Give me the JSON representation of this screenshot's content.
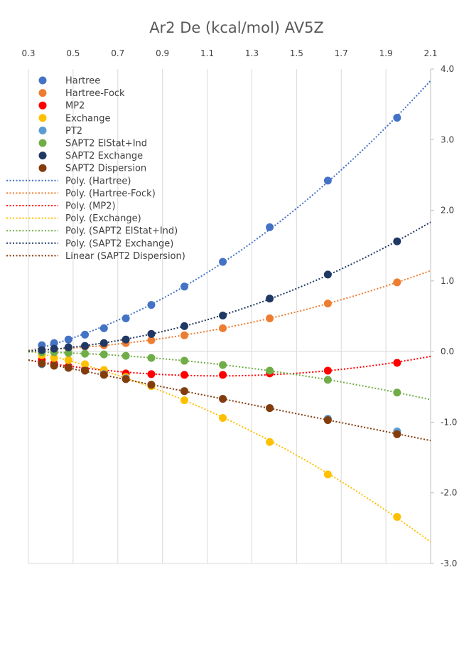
{
  "chart_data": {
    "type": "scatter",
    "title": "Ar2 De (kcal/mol) AV5Z",
    "xlabel": "",
    "ylabel": "",
    "xlim": [
      0.3,
      2.1
    ],
    "ylim": [
      -3.0,
      4.0
    ],
    "x_ticks": [
      "0.3",
      "0.5",
      "0.7",
      "0.9",
      "1.1",
      "1.3",
      "1.5",
      "1.7",
      "1.9",
      "2.1"
    ],
    "y_ticks": [
      "4.0",
      "3.0",
      "2.0",
      "1.0",
      "0.0",
      "-1.0",
      "-2.0",
      "-3.0"
    ],
    "grid": "vertical",
    "legend_position": "top-left",
    "series": [
      {
        "name": "Hartree",
        "color": "#4472C4",
        "x": [
          0.36,
          0.415,
          0.479,
          0.553,
          0.638,
          0.736,
          0.85,
          0.998,
          1.17,
          1.38,
          1.64,
          1.95
        ],
        "y": [
          0.09,
          0.12,
          0.17,
          0.24,
          0.33,
          0.47,
          0.66,
          0.92,
          1.27,
          1.76,
          2.42,
          3.31
        ]
      },
      {
        "name": "Hartree-Fock",
        "color": "#ED7D31",
        "x": [
          0.36,
          0.415,
          0.479,
          0.553,
          0.638,
          0.736,
          0.85,
          0.998,
          1.17,
          1.38,
          1.64,
          1.95
        ],
        "y": [
          0.02,
          0.03,
          0.05,
          0.07,
          0.09,
          0.12,
          0.16,
          0.23,
          0.33,
          0.47,
          0.68,
          0.98
        ]
      },
      {
        "name": "MP2",
        "color": "#FF0000",
        "x": [
          0.36,
          0.415,
          0.479,
          0.553,
          0.638,
          0.736,
          0.85,
          0.998,
          1.17,
          1.38,
          1.64,
          1.95
        ],
        "y": [
          -0.12,
          -0.17,
          -0.21,
          -0.25,
          -0.29,
          -0.31,
          -0.32,
          -0.33,
          -0.33,
          -0.31,
          -0.27,
          -0.16
        ]
      },
      {
        "name": "Exchange",
        "color": "#FFC000",
        "x": [
          0.36,
          0.415,
          0.479,
          0.553,
          0.638,
          0.736,
          0.85,
          0.998,
          1.17,
          1.38,
          1.64,
          1.95
        ],
        "y": [
          -0.05,
          -0.09,
          -0.12,
          -0.18,
          -0.26,
          -0.36,
          -0.49,
          -0.69,
          -0.94,
          -1.28,
          -1.74,
          -2.34
        ]
      },
      {
        "name": "PT2",
        "color": "#5B9BD5",
        "x": [
          0.36,
          0.415,
          0.479,
          0.553,
          0.638,
          0.736,
          0.85,
          0.998,
          1.17,
          1.38,
          1.64,
          1.95
        ],
        "y": [
          -0.18,
          -0.2,
          -0.23,
          -0.27,
          -0.32,
          -0.38,
          -0.47,
          -0.56,
          -0.67,
          -0.8,
          -0.95,
          -1.13
        ]
      },
      {
        "name": "SAPT2 ElStat+Ind",
        "color": "#70AD47",
        "x": [
          0.36,
          0.415,
          0.479,
          0.553,
          0.638,
          0.736,
          0.85,
          0.998,
          1.17,
          1.38,
          1.64,
          1.95
        ],
        "y": [
          -0.01,
          -0.01,
          -0.02,
          -0.03,
          -0.04,
          -0.06,
          -0.09,
          -0.13,
          -0.19,
          -0.27,
          -0.4,
          -0.58
        ]
      },
      {
        "name": "SAPT2 Exchange",
        "color": "#203864",
        "x": [
          0.36,
          0.415,
          0.479,
          0.553,
          0.638,
          0.736,
          0.85,
          0.998,
          1.17,
          1.38,
          1.64,
          1.95
        ],
        "y": [
          0.02,
          0.04,
          0.06,
          0.08,
          0.12,
          0.17,
          0.25,
          0.36,
          0.51,
          0.75,
          1.09,
          1.56
        ]
      },
      {
        "name": "SAPT2 Dispersion",
        "color": "#843C0C",
        "x": [
          0.36,
          0.415,
          0.479,
          0.553,
          0.638,
          0.736,
          0.85,
          0.998,
          1.17,
          1.38,
          1.64,
          1.95
        ],
        "y": [
          -0.17,
          -0.2,
          -0.23,
          -0.27,
          -0.33,
          -0.39,
          -0.47,
          -0.56,
          -0.67,
          -0.8,
          -0.97,
          -1.17
        ]
      }
    ],
    "trendlines": [
      {
        "name": "Poly. (Hartree)",
        "color": "#4472C4",
        "kind": "poly",
        "x": [
          0.3,
          2.1
        ],
        "y_at_x0": 0.0,
        "y_at_x1": 3.78
      },
      {
        "name": "Poly. (Hartree-Fock)",
        "color": "#ED7D31",
        "kind": "poly",
        "x": [
          0.3,
          2.1
        ],
        "y_at_x0": -0.02,
        "y_at_x1": 1.11
      },
      {
        "name": "Poly. (MP2)",
        "color": "#FF0000",
        "kind": "poly",
        "x": [
          0.3,
          2.1
        ],
        "y_at_x0": -0.09,
        "y_at_x1": -0.1
      },
      {
        "name": "Poly. (Exchange)",
        "color": "#FFC000",
        "kind": "poly",
        "x": [
          0.3,
          2.1
        ],
        "y_at_x0": 0.02,
        "y_at_x1": -2.65
      },
      {
        "name": "Poly. (SAPT2 ElStat+Ind)",
        "color": "#70AD47",
        "kind": "poly",
        "x": [
          0.3,
          2.1
        ],
        "y_at_x0": 0.0,
        "y_at_x1": -0.68
      },
      {
        "name": "Poly. (SAPT2 Exchange)",
        "color": "#203864",
        "kind": "poly",
        "x": [
          0.3,
          2.1
        ],
        "y_at_x0": 0.0,
        "y_at_x1": 1.78
      },
      {
        "name": "Linear (SAPT2 Dispersion)",
        "color": "#843C0C",
        "kind": "linear",
        "x": [
          0.3,
          2.1
        ],
        "y_at_x0": -0.12,
        "y_at_x1": -1.26
      }
    ]
  }
}
